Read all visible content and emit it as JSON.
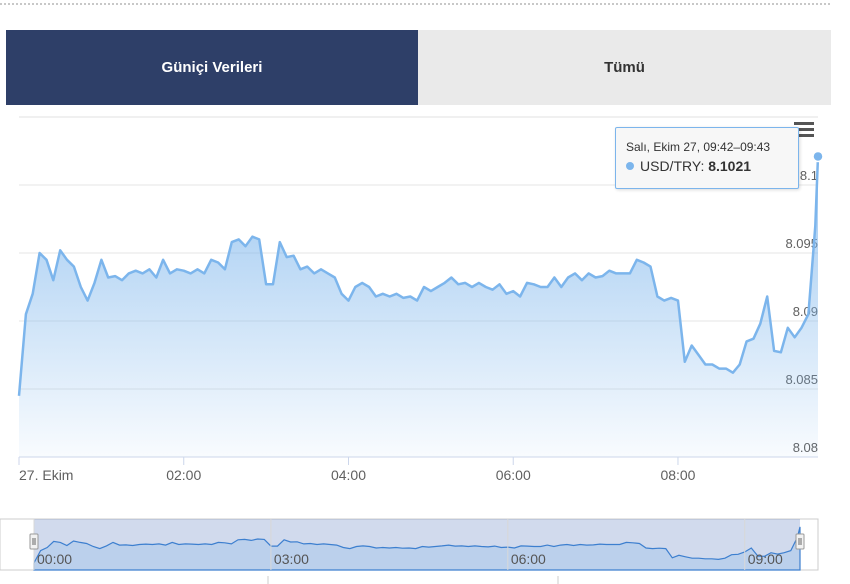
{
  "tabs": [
    {
      "label": "Güniçi Verileri",
      "active": true
    },
    {
      "label": "Tümü",
      "active": false
    }
  ],
  "tooltip": {
    "time": "Salı, Ekim 27, 09:42–09:43",
    "series": "USD/TRY",
    "value": "8.1021"
  },
  "colors": {
    "line": "#7cb5ec",
    "tab_active": "#2e3f68",
    "tab_inactive": "#eaeaea",
    "grid": "#e6e6e6"
  },
  "chart_data": {
    "type": "area",
    "series": [
      {
        "name": "USD/TRY",
        "x": [
          "00:00",
          "00:05",
          "00:10",
          "00:15",
          "00:20",
          "00:25",
          "00:30",
          "00:35",
          "00:40",
          "00:45",
          "00:50",
          "00:55",
          "01:00",
          "01:05",
          "01:10",
          "01:15",
          "01:20",
          "01:25",
          "01:30",
          "01:35",
          "01:40",
          "01:45",
          "01:50",
          "01:55",
          "02:00",
          "02:05",
          "02:10",
          "02:15",
          "02:20",
          "02:25",
          "02:30",
          "02:35",
          "02:40",
          "02:45",
          "02:50",
          "02:55",
          "03:00",
          "03:05",
          "03:10",
          "03:15",
          "03:20",
          "03:25",
          "03:30",
          "03:35",
          "03:40",
          "03:45",
          "03:50",
          "03:55",
          "04:00",
          "04:05",
          "04:10",
          "04:15",
          "04:20",
          "04:25",
          "04:30",
          "04:35",
          "04:40",
          "04:45",
          "04:50",
          "04:55",
          "05:00",
          "05:05",
          "05:10",
          "05:15",
          "05:20",
          "05:25",
          "05:30",
          "05:35",
          "05:40",
          "05:45",
          "05:50",
          "05:55",
          "06:00",
          "06:05",
          "06:10",
          "06:15",
          "06:20",
          "06:25",
          "06:30",
          "06:35",
          "06:40",
          "06:45",
          "06:50",
          "06:55",
          "07:00",
          "07:05",
          "07:10",
          "07:15",
          "07:20",
          "07:25",
          "07:30",
          "07:35",
          "07:40",
          "07:45",
          "07:50",
          "07:55",
          "08:00",
          "08:05",
          "08:10",
          "08:15",
          "08:20",
          "08:25",
          "08:30",
          "08:35",
          "08:40",
          "08:45",
          "08:50",
          "08:55",
          "09:00",
          "09:05",
          "09:10",
          "09:15",
          "09:20",
          "09:25",
          "09:30",
          "09:35",
          "09:40",
          "09:42"
        ],
        "values": [
          8.0845,
          8.0905,
          8.092,
          8.095,
          8.0945,
          8.093,
          8.0952,
          8.0945,
          8.094,
          8.0925,
          8.0915,
          8.0928,
          8.0945,
          8.0932,
          8.0933,
          8.093,
          8.0935,
          8.0937,
          8.0935,
          8.0938,
          8.0932,
          8.0945,
          8.0935,
          8.0938,
          8.0937,
          8.0935,
          8.0938,
          8.0935,
          8.0945,
          8.0943,
          8.0938,
          8.0958,
          8.096,
          8.0955,
          8.0962,
          8.096,
          8.0927,
          8.0927,
          8.0958,
          8.0947,
          8.0948,
          8.0938,
          8.094,
          8.0935,
          8.0938,
          8.0935,
          8.0932,
          8.092,
          8.0915,
          8.0925,
          8.0928,
          8.0925,
          8.0918,
          8.092,
          8.0918,
          8.092,
          8.0917,
          8.0918,
          8.0915,
          8.0925,
          8.0922,
          8.0925,
          8.0928,
          8.0932,
          8.0927,
          8.0928,
          8.0925,
          8.0928,
          8.0925,
          8.0923,
          8.0927,
          8.092,
          8.0922,
          8.0918,
          8.0928,
          8.0927,
          8.0925,
          8.0925,
          8.0932,
          8.0925,
          8.0932,
          8.0935,
          8.093,
          8.0935,
          8.0932,
          8.0933,
          8.0937,
          8.0935,
          8.0935,
          8.0935,
          8.0945,
          8.0943,
          8.094,
          8.0918,
          8.0915,
          8.0917,
          8.0915,
          8.087,
          8.0882,
          8.0875,
          8.0868,
          8.0868,
          8.0865,
          8.0865,
          8.0862,
          8.0868,
          8.0885,
          8.0887,
          8.0898,
          8.0918,
          8.0878,
          8.0877,
          8.0895,
          8.0888,
          8.0895,
          8.0905,
          8.097,
          8.1021
        ]
      }
    ],
    "y_ticks": [
      "8.08",
      "8.085",
      "8.09",
      "8.095",
      "8.1"
    ],
    "x_ticks": [
      "27. Ekim",
      "02:00",
      "04:00",
      "06:00",
      "08:00"
    ],
    "navigator_ticks": [
      "00:00",
      "03:00",
      "06:00",
      "09:00"
    ],
    "ylim": [
      8.08,
      8.105
    ],
    "xlim": [
      "00:00",
      "09:42"
    ],
    "grid": true
  }
}
